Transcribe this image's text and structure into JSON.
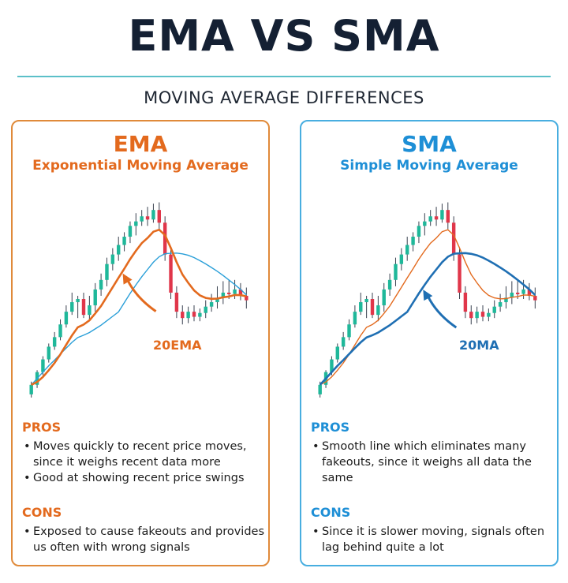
{
  "title": "EMA VS SMA",
  "subtitle": "MOVING AVERAGE DIFFERENCES",
  "colors": {
    "ema_accent": "#e36a1e",
    "sma_accent": "#1e8fd6",
    "bull": "#1fb89a",
    "bear": "#e0364a",
    "title": "#142033"
  },
  "panels": [
    {
      "id": "ema",
      "heading": "EMA",
      "subheading": "Exponential Moving Average",
      "line_label": "20EMA",
      "pros_label": "PROS",
      "pros": [
        "Moves quickly to recent price moves, since it weighs recent data more",
        "Good at showing recent price swings"
      ],
      "cons_label": "CONS",
      "cons": [
        "Exposed to cause fakeouts and provides us often with wrong signals"
      ]
    },
    {
      "id": "sma",
      "heading": "SMA",
      "subheading": "Simple Moving Average",
      "line_label": "20MA",
      "pros_label": "PROS",
      "pros": [
        "Smooth line which eliminates many fakeouts, since it weighs all data the same"
      ],
      "cons_label": "CONS",
      "cons": [
        "Since it is slower moving, signals often lag behind quite a lot"
      ]
    }
  ],
  "chart_data": [
    {
      "type": "candlestick",
      "series": [
        {
          "name": "20EMA"
        }
      ],
      "candles": [
        [
          20,
          35,
          15,
          40
        ],
        [
          35,
          55,
          30,
          58
        ],
        [
          55,
          75,
          50,
          80
        ],
        [
          75,
          95,
          70,
          100
        ],
        [
          95,
          110,
          90,
          118
        ],
        [
          110,
          130,
          105,
          138
        ],
        [
          130,
          150,
          125,
          160
        ],
        [
          150,
          165,
          145,
          180
        ],
        [
          165,
          170,
          140,
          175
        ],
        [
          170,
          145,
          140,
          180
        ],
        [
          145,
          160,
          135,
          175
        ],
        [
          160,
          185,
          150,
          195
        ],
        [
          185,
          200,
          175,
          210
        ],
        [
          200,
          225,
          190,
          235
        ],
        [
          225,
          240,
          215,
          250
        ],
        [
          240,
          255,
          230,
          268
        ],
        [
          255,
          268,
          245,
          275
        ],
        [
          268,
          285,
          258,
          292
        ],
        [
          285,
          292,
          270,
          305
        ],
        [
          292,
          300,
          285,
          310
        ],
        [
          300,
          295,
          285,
          315
        ],
        [
          295,
          310,
          290,
          320
        ],
        [
          310,
          290,
          280,
          322
        ],
        [
          290,
          240,
          230,
          300
        ],
        [
          240,
          180,
          170,
          250
        ],
        [
          180,
          150,
          140,
          190
        ],
        [
          150,
          140,
          130,
          160
        ],
        [
          140,
          150,
          132,
          158
        ],
        [
          150,
          142,
          135,
          160
        ],
        [
          142,
          148,
          135,
          155
        ],
        [
          148,
          158,
          140,
          168
        ],
        [
          158,
          165,
          150,
          178
        ],
        [
          165,
          172,
          155,
          190
        ],
        [
          172,
          180,
          162,
          198
        ],
        [
          180,
          178,
          170,
          200
        ],
        [
          178,
          185,
          170,
          200
        ],
        [
          185,
          175,
          168,
          195
        ],
        [
          175,
          168,
          155,
          188
        ]
      ]
    },
    {
      "type": "candlestick",
      "series": [
        {
          "name": "20MA"
        }
      ],
      "candles": [
        [
          20,
          35,
          15,
          40
        ],
        [
          35,
          55,
          30,
          58
        ],
        [
          55,
          75,
          50,
          80
        ],
        [
          75,
          95,
          70,
          100
        ],
        [
          95,
          110,
          90,
          118
        ],
        [
          110,
          130,
          105,
          138
        ],
        [
          130,
          150,
          125,
          160
        ],
        [
          150,
          165,
          145,
          180
        ],
        [
          165,
          170,
          140,
          175
        ],
        [
          170,
          145,
          140,
          180
        ],
        [
          145,
          160,
          135,
          175
        ],
        [
          160,
          185,
          150,
          195
        ],
        [
          185,
          200,
          175,
          210
        ],
        [
          200,
          225,
          190,
          235
        ],
        [
          225,
          240,
          215,
          250
        ],
        [
          240,
          255,
          230,
          268
        ],
        [
          255,
          268,
          245,
          275
        ],
        [
          268,
          285,
          258,
          292
        ],
        [
          285,
          292,
          270,
          305
        ],
        [
          292,
          300,
          285,
          310
        ],
        [
          300,
          295,
          285,
          315
        ],
        [
          295,
          310,
          290,
          320
        ],
        [
          310,
          290,
          280,
          322
        ],
        [
          290,
          240,
          230,
          300
        ],
        [
          240,
          180,
          170,
          250
        ],
        [
          180,
          150,
          140,
          190
        ],
        [
          150,
          140,
          130,
          160
        ],
        [
          140,
          150,
          132,
          158
        ],
        [
          150,
          142,
          135,
          160
        ],
        [
          142,
          148,
          135,
          155
        ],
        [
          148,
          158,
          140,
          168
        ],
        [
          158,
          165,
          150,
          178
        ],
        [
          165,
          172,
          155,
          190
        ],
        [
          172,
          180,
          162,
          198
        ],
        [
          180,
          178,
          170,
          200
        ],
        [
          178,
          185,
          170,
          200
        ],
        [
          185,
          175,
          168,
          195
        ],
        [
          175,
          168,
          155,
          188
        ]
      ]
    }
  ]
}
